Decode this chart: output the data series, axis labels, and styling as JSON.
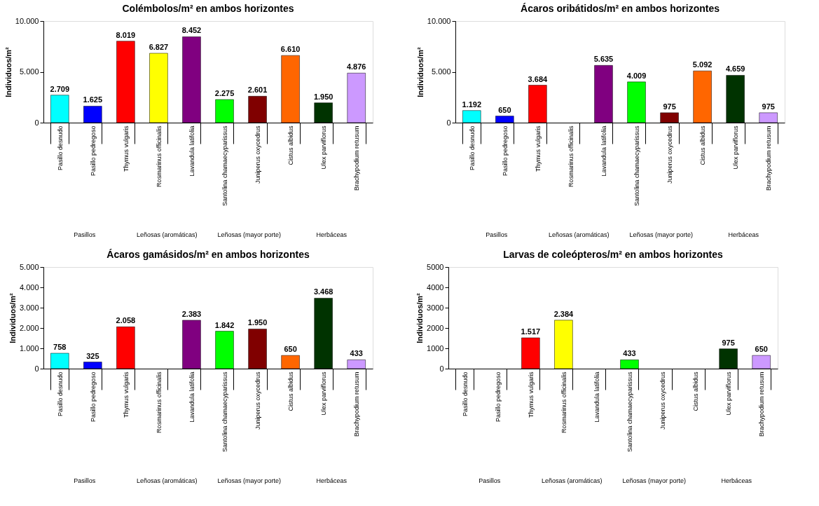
{
  "chart_data": [
    {
      "type": "bar",
      "title": "Colémbolos/m² en ambos horizontes",
      "ylabel": "Individuos/m²",
      "categories": [
        "Pasillo desnudo",
        "Pasillo pedregoso",
        "Thymus vulgaris",
        "Rosmarinus officinalis",
        "Lavandula latifolia",
        "Santolina chamaecyparissus",
        "Juniperus oxycedrus",
        "Cistus albidus",
        "Ulex parviflorus",
        "Brachypodium retusum"
      ],
      "values": [
        2709,
        1625,
        8019,
        6827,
        8452,
        2275,
        2601,
        6610,
        1950,
        4876
      ],
      "value_labels": [
        "2.709",
        "1.625",
        "8.019",
        "6.827",
        "8.452",
        "2.275",
        "2.601",
        "6.610",
        "1.950",
        "4.876"
      ],
      "colors": [
        "#00ffff",
        "#0000ff",
        "#ff0000",
        "#ffff00",
        "#800080",
        "#00ff00",
        "#800000",
        "#ff6600",
        "#003300",
        "#cc99ff"
      ],
      "ylim": [
        0,
        10000
      ],
      "yticks": [
        0,
        {
          "value": 5000,
          "label": "5.000"
        },
        {
          "value": 10000,
          "label": "10.000"
        }
      ],
      "grid": false,
      "annotations": [
        "Pasillos",
        "Leñosas (aromáticas)",
        "Leñosas (mayor porte)",
        "Herbáceas"
      ]
    },
    {
      "type": "bar",
      "title": "Ácaros oribátidos/m² en ambos horizontes",
      "ylabel": "Individuos/m²",
      "categories": [
        "Pasillo desnudo",
        "Pasillo pedregoso",
        "Thymus vulgaris",
        "Rosmarinus officinalis",
        "Lavandula latifolia",
        "Santolina chamaecyparissus",
        "Juniperus oxycedrus",
        "Cistus albidus",
        "Ulex parviflorus",
        "Brachypodium retusum"
      ],
      "values": [
        1192,
        650,
        3684,
        null,
        5635,
        4009,
        975,
        5092,
        4659,
        975
      ],
      "value_labels": [
        "1.192",
        "650",
        "3.684",
        null,
        "5.635",
        "4.009",
        "975",
        "5.092",
        "4.659",
        "975"
      ],
      "colors": [
        "#00ffff",
        "#0000ff",
        "#ff0000",
        "#ffff00",
        "#800080",
        "#00ff00",
        "#800000",
        "#ff6600",
        "#003300",
        "#cc99ff"
      ],
      "ylim": [
        0,
        10000
      ],
      "yticks": [
        0,
        {
          "value": 5000,
          "label": "5.000"
        },
        {
          "value": 10000,
          "label": "10.000"
        }
      ],
      "grid": false,
      "annotations": [
        "Pasillos",
        "Leñosas (aromáticas)",
        "Leñosas (mayor porte)",
        "Herbáceas"
      ]
    },
    {
      "type": "bar",
      "title": "Ácaros gamásidos/m² en ambos horizontes",
      "ylabel": "Individuos/m²",
      "categories": [
        "Pasillo desnudo",
        "Pasillo pedregoso",
        "Thymus vulgaris",
        "Rosmarinus officinalis",
        "Lavandula latifolia",
        "Santolina chamaecyparissus",
        "Juniperus oxycedrus",
        "Cistus albidus",
        "Ulex parviflorus",
        "Brachypodium retusum"
      ],
      "values": [
        758,
        325,
        2058,
        null,
        2383,
        1842,
        1950,
        650,
        3468,
        433
      ],
      "value_labels": [
        "758",
        "325",
        "2.058",
        null,
        "2.383",
        "1.842",
        "1.950",
        "650",
        "3.468",
        "433"
      ],
      "colors": [
        "#00ffff",
        "#0000ff",
        "#ff0000",
        "#ffff00",
        "#800080",
        "#00ff00",
        "#800000",
        "#ff6600",
        "#003300",
        "#cc99ff"
      ],
      "ylim": [
        0,
        5000
      ],
      "yticks": [
        0,
        {
          "value": 1000,
          "label": "1.000"
        },
        {
          "value": 2000,
          "label": "2.000"
        },
        {
          "value": 3000,
          "label": "3.000"
        },
        {
          "value": 4000,
          "label": "4.000"
        },
        {
          "value": 5000,
          "label": "5.000"
        }
      ],
      "grid": false,
      "annotations": [
        "Pasillos",
        "Leñosas (aromáticas)",
        "Leñosas (mayor porte)",
        "Herbáceas"
      ]
    },
    {
      "type": "bar",
      "title": "Larvas de coleópteros/m² en ambos horizontes",
      "ylabel": "Individuos/m²",
      "categories": [
        "Pasillo desnudo",
        "Pasillo pedregoso",
        "Thymus vulgaris",
        "Rosmarinus officinalis",
        "Lavandula latifolia",
        "Santolina chamaecyparissus",
        "Juniperus oxycedrus",
        "Cistus albidus",
        "Ulex parviflorus",
        "Brachypodium retusum"
      ],
      "values": [
        null,
        null,
        1517,
        2384,
        null,
        433,
        null,
        null,
        975,
        650
      ],
      "value_labels": [
        null,
        null,
        "1.517",
        "2.384",
        null,
        "433",
        null,
        null,
        "975",
        "650"
      ],
      "colors": [
        "#00ffff",
        "#0000ff",
        "#ff0000",
        "#ffff00",
        "#800080",
        "#00ff00",
        "#800000",
        "#ff6600",
        "#003300",
        "#cc99ff"
      ],
      "ylim": [
        0,
        5000
      ],
      "yticks": [
        0,
        1000,
        2000,
        3000,
        4000,
        5000
      ],
      "grid": false,
      "annotations": [
        "Pasillos",
        "Leñosas (aromáticas)",
        "Leñosas (mayor porte)",
        "Herbáceas"
      ]
    }
  ]
}
